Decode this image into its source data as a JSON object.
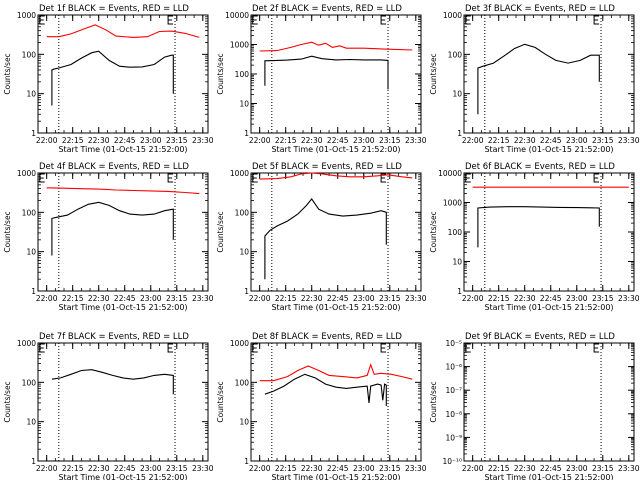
{
  "chart_data": [
    {
      "type": "line",
      "title": "Det 1f BLACK = Events, RED = LLD",
      "xlabel": "Start Time (01-Oct-15 21:52:00)",
      "ylabel": "Counts/sec",
      "y_scale": "log",
      "ylim": [
        1,
        1000
      ],
      "y_ticks": [
        1,
        10,
        100,
        1000
      ],
      "y_tick_labels": [
        "1",
        "10",
        "100",
        "1000"
      ],
      "xlim": [
        "21:55",
        "23:33"
      ],
      "x_ticks": [
        "22:00",
        "22:15",
        "22:30",
        "22:45",
        "23:00",
        "23:15",
        "23:30"
      ],
      "vlines": [
        "22:07",
        "23:14"
      ],
      "markers": [
        "21:56",
        "23:10"
      ],
      "grid": false,
      "series": [
        {
          "color": "#ff0000",
          "x": [
            "22:00",
            "22:07",
            "22:14",
            "22:22",
            "22:28",
            "22:34",
            "22:40",
            "22:50",
            "22:58",
            "23:05",
            "23:12",
            "23:20",
            "23:28"
          ],
          "y": [
            280,
            280,
            330,
            450,
            560,
            420,
            290,
            270,
            280,
            380,
            390,
            340,
            270
          ]
        },
        {
          "color": "#000000",
          "x": [
            "22:03",
            "22:03",
            "22:04",
            "22:07",
            "22:14",
            "22:20",
            "22:26",
            "22:30",
            "22:36",
            "22:42",
            "22:48",
            "22:55",
            "23:02",
            "23:08",
            "23:12",
            "23:13",
            "23:13"
          ],
          "y": [
            5,
            40,
            42,
            45,
            55,
            80,
            110,
            120,
            70,
            50,
            47,
            48,
            55,
            85,
            95,
            95,
            10
          ]
        }
      ]
    },
    {
      "type": "line",
      "title": "Det 2f BLACK = Events, RED = LLD",
      "xlabel": "Start Time (01-Oct-15 21:52:00)",
      "ylabel": "Counts/sec",
      "y_scale": "log",
      "ylim": [
        1,
        10000
      ],
      "y_ticks": [
        1,
        10,
        100,
        1000,
        10000
      ],
      "y_tick_labels": [
        "1",
        "10",
        "100",
        "1000",
        "10000"
      ],
      "xlim": [
        "21:55",
        "23:33"
      ],
      "x_ticks": [
        "22:00",
        "22:15",
        "22:30",
        "22:45",
        "23:00",
        "23:15",
        "23:30"
      ],
      "vlines": [
        "22:07",
        "23:14"
      ],
      "markers": [
        "21:56",
        "23:10"
      ],
      "grid": false,
      "series": [
        {
          "color": "#ff0000",
          "x": [
            "22:00",
            "22:10",
            "22:18",
            "22:24",
            "22:30",
            "22:34",
            "22:38",
            "22:42",
            "22:46",
            "22:50",
            "23:00",
            "23:12",
            "23:28"
          ],
          "y": [
            600,
            620,
            800,
            1000,
            1200,
            950,
            1100,
            800,
            900,
            750,
            750,
            700,
            650
          ]
        },
        {
          "color": "#000000",
          "x": [
            "22:03",
            "22:03",
            "22:08",
            "22:16",
            "22:24",
            "22:30",
            "22:36",
            "22:44",
            "22:52",
            "23:00",
            "23:10",
            "23:14",
            "23:14"
          ],
          "y": [
            40,
            280,
            285,
            295,
            320,
            400,
            330,
            300,
            310,
            300,
            300,
            290,
            30
          ]
        }
      ]
    },
    {
      "type": "line",
      "title": "Det 3f BLACK = Events, RED = LLD",
      "xlabel": "Start Time (01-Oct-15 21:52:00)",
      "ylabel": "Counts/sec",
      "y_scale": "log",
      "ylim": [
        1,
        1000
      ],
      "y_ticks": [
        1,
        10,
        100,
        1000
      ],
      "y_tick_labels": [
        "1",
        "10",
        "100",
        "1000"
      ],
      "xlim": [
        "21:55",
        "23:33"
      ],
      "x_ticks": [
        "22:00",
        "22:15",
        "22:30",
        "22:45",
        "23:00",
        "23:15",
        "23:30"
      ],
      "vlines": [
        "22:07",
        "23:14"
      ],
      "markers": [
        "21:56",
        "23:10"
      ],
      "grid": false,
      "series": [
        {
          "color": "#000000",
          "x": [
            "22:03",
            "22:03",
            "22:06",
            "22:12",
            "22:18",
            "22:24",
            "22:30",
            "22:36",
            "22:42",
            "22:48",
            "22:55",
            "23:02",
            "23:08",
            "23:13",
            "23:13"
          ],
          "y": [
            3,
            45,
            50,
            60,
            90,
            140,
            180,
            150,
            100,
            70,
            60,
            70,
            95,
            95,
            20
          ]
        }
      ]
    },
    {
      "type": "line",
      "title": "Det 4f BLACK = Events, RED = LLD",
      "xlabel": "Start Time (01-Oct-15 21:52:00)",
      "ylabel": "Counts/sec",
      "y_scale": "log",
      "ylim": [
        1,
        1000
      ],
      "y_ticks": [
        1,
        10,
        100,
        1000
      ],
      "y_tick_labels": [
        "1",
        "10",
        "100",
        "1000"
      ],
      "xlim": [
        "21:55",
        "23:33"
      ],
      "x_ticks": [
        "22:00",
        "22:15",
        "22:30",
        "22:45",
        "23:00",
        "23:15",
        "23:30"
      ],
      "vlines": [
        "22:07",
        "23:14"
      ],
      "markers": [
        "21:56",
        "23:10"
      ],
      "grid": false,
      "series": [
        {
          "color": "#ff0000",
          "x": [
            "22:00",
            "22:10",
            "22:20",
            "22:30",
            "22:40",
            "22:50",
            "23:00",
            "23:10",
            "23:20",
            "23:28"
          ],
          "y": [
            420,
            410,
            400,
            390,
            370,
            360,
            350,
            340,
            320,
            300
          ]
        },
        {
          "color": "#000000",
          "x": [
            "22:03",
            "22:03",
            "22:06",
            "22:12",
            "22:18",
            "22:24",
            "22:30",
            "22:36",
            "22:42",
            "22:48",
            "22:55",
            "23:02",
            "23:08",
            "23:13",
            "23:13"
          ],
          "y": [
            8,
            70,
            75,
            85,
            120,
            160,
            180,
            150,
            110,
            90,
            85,
            90,
            110,
            120,
            20
          ]
        }
      ]
    },
    {
      "type": "line",
      "title": "Det 5f BLACK = Events, RED = LLD",
      "xlabel": "Start Time (01-Oct-15 21:52:00)",
      "ylabel": "Counts/sec",
      "y_scale": "log",
      "ylim": [
        1,
        1000
      ],
      "y_ticks": [
        1,
        10,
        100,
        1000
      ],
      "y_tick_labels": [
        "1",
        "10",
        "100",
        "1000"
      ],
      "xlim": [
        "21:55",
        "23:33"
      ],
      "x_ticks": [
        "22:00",
        "22:15",
        "22:30",
        "22:45",
        "23:00",
        "23:15",
        "23:30"
      ],
      "vlines": [
        "22:07",
        "23:14"
      ],
      "markers": [
        "21:56",
        "23:10"
      ],
      "grid": false,
      "series": [
        {
          "color": "#ff0000",
          "x": [
            "22:00",
            "22:10",
            "22:18",
            "22:24",
            "22:30",
            "22:36",
            "22:44",
            "22:52",
            "23:00",
            "23:08",
            "23:14",
            "23:22",
            "23:28"
          ],
          "y": [
            700,
            720,
            800,
            950,
            1000,
            950,
            850,
            800,
            800,
            850,
            900,
            800,
            750
          ]
        },
        {
          "color": "#000000",
          "x": [
            "22:03",
            "22:03",
            "22:06",
            "22:10",
            "22:16",
            "22:22",
            "22:27",
            "22:30",
            "22:34",
            "22:40",
            "22:48",
            "22:56",
            "23:04",
            "23:10",
            "23:13",
            "23:13"
          ],
          "y": [
            2,
            25,
            35,
            45,
            60,
            90,
            150,
            220,
            120,
            90,
            80,
            85,
            95,
            110,
            100,
            15
          ]
        }
      ]
    },
    {
      "type": "line",
      "title": "Det 6f BLACK = Events, RED = LLD",
      "xlabel": "Start Time (01-Oct-15 21:52:00)",
      "ylabel": "Counts/sec",
      "y_scale": "log",
      "ylim": [
        1,
        10000
      ],
      "y_ticks": [
        1,
        10,
        100,
        1000,
        10000
      ],
      "y_tick_labels": [
        "1",
        "10",
        "100",
        "1000",
        "10000"
      ],
      "xlim": [
        "21:55",
        "23:33"
      ],
      "x_ticks": [
        "22:00",
        "22:15",
        "22:30",
        "22:45",
        "23:00",
        "23:15",
        "23:30"
      ],
      "vlines": [
        "22:07",
        "23:14"
      ],
      "markers": [
        "21:56",
        "23:10"
      ],
      "grid": false,
      "series": [
        {
          "color": "#ff0000",
          "x": [
            "22:00",
            "22:15",
            "22:30",
            "22:45",
            "23:00",
            "23:15",
            "23:30"
          ],
          "y": [
            3300,
            3300,
            3300,
            3300,
            3300,
            3300,
            3300
          ]
        },
        {
          "color": "#000000",
          "x": [
            "22:03",
            "22:03",
            "22:10",
            "22:20",
            "22:30",
            "22:40",
            "22:50",
            "23:00",
            "23:08",
            "23:13",
            "23:13"
          ],
          "y": [
            30,
            650,
            700,
            720,
            720,
            700,
            680,
            670,
            660,
            650,
            150
          ]
        }
      ]
    },
    {
      "type": "line",
      "title": "Det 7f BLACK = Events, RED = LLD",
      "xlabel": "Start Time (01-Oct-15 21:52:00)",
      "ylabel": "Counts/sec",
      "y_scale": "log",
      "ylim": [
        1,
        1000
      ],
      "y_ticks": [
        1,
        10,
        100,
        1000
      ],
      "y_tick_labels": [
        "1",
        "10",
        "100",
        "1000"
      ],
      "xlim": [
        "21:55",
        "23:33"
      ],
      "x_ticks": [
        "22:00",
        "22:15",
        "22:30",
        "22:45",
        "23:00",
        "23:15",
        "23:30"
      ],
      "vlines": [
        "22:07",
        "23:14"
      ],
      "markers": [
        "21:56",
        "23:10"
      ],
      "grid": false,
      "series": [
        {
          "color": "#000000",
          "x": [
            "22:03",
            "22:08",
            "22:14",
            "22:20",
            "22:26",
            "22:32",
            "22:38",
            "22:44",
            "22:50",
            "22:56",
            "23:02",
            "23:08",
            "23:13",
            "23:13"
          ],
          "y": [
            120,
            130,
            160,
            200,
            210,
            180,
            150,
            130,
            120,
            130,
            150,
            160,
            150,
            50
          ]
        }
      ]
    },
    {
      "type": "line",
      "title": "Det 8f BLACK = Events, RED = LLD",
      "xlabel": "Start Time (01-Oct-15 21:52:00)",
      "ylabel": "Counts/sec",
      "y_scale": "log",
      "ylim": [
        1,
        1000
      ],
      "y_ticks": [
        1,
        10,
        100,
        1000
      ],
      "y_tick_labels": [
        "1",
        "10",
        "100",
        "1000"
      ],
      "xlim": [
        "21:55",
        "23:33"
      ],
      "x_ticks": [
        "22:00",
        "22:15",
        "22:30",
        "22:45",
        "23:00",
        "23:15",
        "23:30"
      ],
      "vlines": [
        "22:07",
        "23:14"
      ],
      "markers": [
        "21:56",
        "23:10"
      ],
      "grid": false,
      "series": [
        {
          "color": "#ff0000",
          "x": [
            "22:00",
            "22:08",
            "22:16",
            "22:22",
            "22:28",
            "22:34",
            "22:40",
            "22:48",
            "22:56",
            "23:02",
            "23:04",
            "23:06",
            "23:10",
            "23:16",
            "23:22",
            "23:28"
          ],
          "y": [
            110,
            110,
            140,
            200,
            260,
            200,
            150,
            140,
            130,
            150,
            280,
            160,
            170,
            160,
            140,
            120
          ]
        },
        {
          "color": "#000000",
          "x": [
            "22:03",
            "22:08",
            "22:14",
            "22:20",
            "22:26",
            "22:32",
            "22:38",
            "22:44",
            "22:50",
            "22:56",
            "23:02",
            "23:03",
            "23:04",
            "23:08",
            "23:10",
            "23:11",
            "23:12",
            "23:13",
            "23:13"
          ],
          "y": [
            50,
            60,
            80,
            120,
            160,
            130,
            90,
            75,
            70,
            75,
            80,
            30,
            80,
            90,
            85,
            35,
            90,
            85,
            25
          ]
        }
      ]
    },
    {
      "type": "line",
      "title": "Det 9f BLACK = Events, RED = LLD",
      "xlabel": "Start Time (01-Oct-15 21:52:00)",
      "ylabel": "Counts/sec",
      "y_scale": "log",
      "ylim": [
        1e-10,
        1e-05
      ],
      "y_ticks": [
        1e-10,
        1e-09,
        1e-08,
        1e-07,
        1e-06,
        1e-05
      ],
      "y_tick_labels": [
        "10⁻¹⁰",
        "10⁻⁹",
        "10⁻⁸",
        "10⁻⁷",
        "10⁻⁶",
        "10⁻⁵"
      ],
      "xlim": [
        "21:55",
        "23:33"
      ],
      "x_ticks": [
        "22:00",
        "22:15",
        "22:30",
        "22:45",
        "23:00",
        "23:15",
        "23:30"
      ],
      "vlines": [
        "22:07",
        "23:14"
      ],
      "markers": [
        "21:56",
        "23:10"
      ],
      "grid": false,
      "series": []
    }
  ]
}
